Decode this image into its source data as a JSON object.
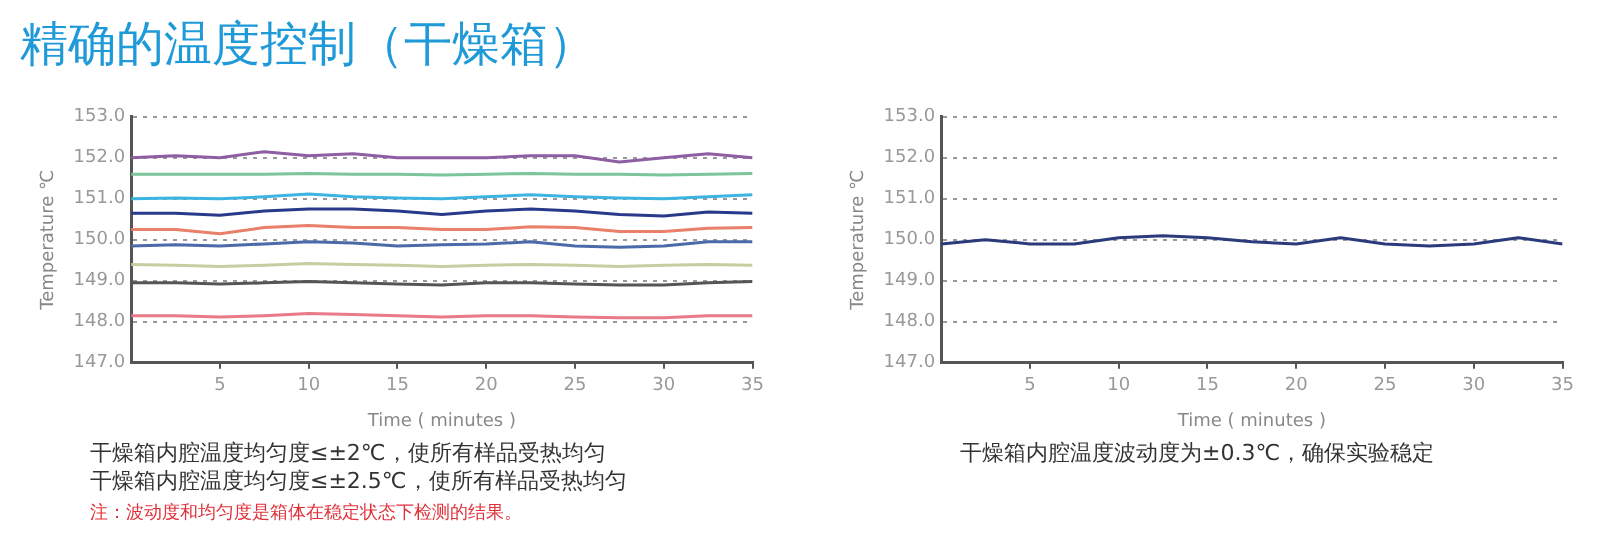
{
  "chart_data": [
    {
      "type": "line",
      "title": "精确的温度控制（干燥箱）",
      "xlabel": "Time ( minutes )",
      "ylabel": "Temperature ℃",
      "x": [
        0,
        2.5,
        5,
        7.5,
        10,
        12.5,
        15,
        17.5,
        20,
        22.5,
        25,
        27.5,
        30,
        32.5,
        35
      ],
      "xlim": [
        0,
        35
      ],
      "xticks": [
        5,
        10,
        15,
        20,
        25,
        30,
        35
      ],
      "ylim": [
        147,
        153
      ],
      "yticks": [
        {
          "value": 147,
          "label": "147.0"
        },
        {
          "value": 148,
          "label": "148.0"
        },
        {
          "value": 149,
          "label": "149.0"
        },
        {
          "value": 150,
          "label": "150.0"
        },
        {
          "value": 151,
          "label": "151.0"
        },
        {
          "value": 152,
          "label": "152.0"
        },
        {
          "value": 153,
          "label": "153.0"
        }
      ],
      "grid": "y",
      "legend": false,
      "series": [
        {
          "color": "#8e5ea2",
          "values": [
            152.0,
            152.05,
            152.0,
            152.15,
            152.05,
            152.1,
            152.0,
            152.0,
            152.0,
            152.05,
            152.05,
            151.9,
            152.0,
            152.1,
            152.0
          ]
        },
        {
          "color": "#7cc49a",
          "values": [
            151.6,
            151.6,
            151.6,
            151.6,
            151.62,
            151.6,
            151.6,
            151.58,
            151.6,
            151.62,
            151.6,
            151.6,
            151.58,
            151.6,
            151.62
          ]
        },
        {
          "color": "#3cb4e0",
          "values": [
            151.0,
            151.02,
            151.0,
            151.05,
            151.12,
            151.05,
            151.02,
            151.0,
            151.05,
            151.1,
            151.05,
            151.02,
            151.0,
            151.05,
            151.1
          ]
        },
        {
          "color": "#2a3a8a",
          "values": [
            150.65,
            150.65,
            150.6,
            150.7,
            150.75,
            150.75,
            150.7,
            150.62,
            150.7,
            150.75,
            150.7,
            150.62,
            150.58,
            150.68,
            150.65
          ]
        },
        {
          "color": "#e8806a",
          "values": [
            150.25,
            150.25,
            150.15,
            150.3,
            150.35,
            150.3,
            150.3,
            150.25,
            150.25,
            150.32,
            150.3,
            150.2,
            150.2,
            150.28,
            150.3
          ]
        },
        {
          "color": "#4a6aaa",
          "values": [
            149.85,
            149.88,
            149.85,
            149.9,
            149.95,
            149.92,
            149.85,
            149.88,
            149.9,
            149.95,
            149.85,
            149.82,
            149.85,
            149.95,
            149.95
          ]
        },
        {
          "color": "#c8cca0",
          "values": [
            149.4,
            149.38,
            149.35,
            149.38,
            149.42,
            149.4,
            149.38,
            149.35,
            149.38,
            149.4,
            149.38,
            149.35,
            149.38,
            149.4,
            149.38
          ]
        },
        {
          "color": "#555555",
          "values": [
            148.95,
            148.95,
            148.92,
            148.95,
            148.98,
            148.95,
            148.92,
            148.9,
            148.95,
            148.95,
            148.92,
            148.9,
            148.9,
            148.95,
            148.98
          ]
        },
        {
          "color": "#e87a8a",
          "values": [
            148.15,
            148.15,
            148.12,
            148.15,
            148.2,
            148.18,
            148.15,
            148.12,
            148.15,
            148.15,
            148.12,
            148.1,
            148.1,
            148.15,
            148.15
          ]
        }
      ],
      "annotations": [
        "干燥箱内腔温度均匀度≤±2℃，使所有样品受热均匀",
        "干燥箱内腔温度均匀度≤±2.5℃，使所有样品受热均匀",
        "注：波动度和均匀度是箱体在稳定状态下检测的结果。"
      ]
    },
    {
      "type": "line",
      "xlabel": "Time ( minutes )",
      "ylabel": "Temperature ℃",
      "x": [
        0,
        2.5,
        5,
        7.5,
        10,
        12.5,
        15,
        17.5,
        20,
        22.5,
        25,
        27.5,
        30,
        32.5,
        35
      ],
      "xlim": [
        0,
        35
      ],
      "xticks": [
        5,
        10,
        15,
        20,
        25,
        30,
        35
      ],
      "ylim": [
        147,
        153
      ],
      "yticks": [
        {
          "value": 147,
          "label": "147.0"
        },
        {
          "value": 148,
          "label": "148.0"
        },
        {
          "value": 149,
          "label": "149.0"
        },
        {
          "value": 150,
          "label": "150.0"
        },
        {
          "value": 151,
          "label": "151.0"
        },
        {
          "value": 152,
          "label": "152.0"
        },
        {
          "value": 153,
          "label": "153.0"
        }
      ],
      "grid": "y",
      "legend": false,
      "series": [
        {
          "color": "#2a3a7a",
          "values": [
            149.9,
            150.0,
            149.9,
            149.9,
            150.05,
            150.1,
            150.05,
            149.95,
            149.9,
            150.05,
            149.9,
            149.85,
            149.9,
            150.05,
            149.9
          ]
        }
      ],
      "annotations": [
        "干燥箱内腔温度波动度为±0.3℃，确保实验稳定"
      ]
    }
  ]
}
